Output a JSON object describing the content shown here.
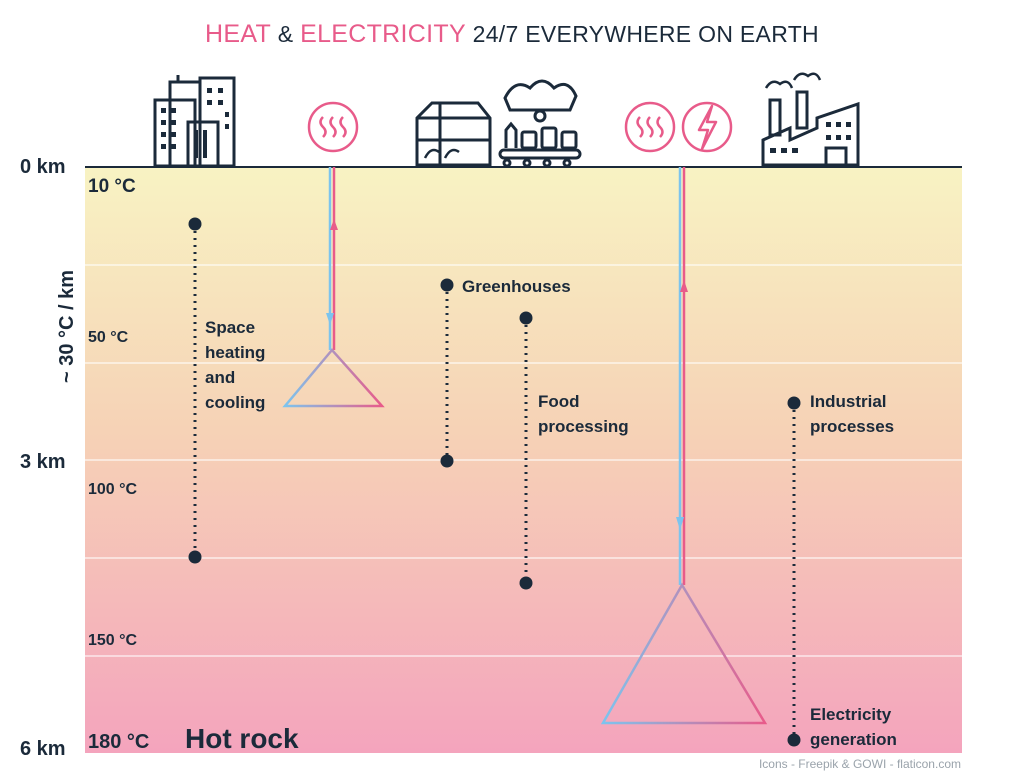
{
  "title": {
    "part1": "HEAT",
    "amp": " & ",
    "part2": "ELECTRICITY",
    "rest": " 24/7 EVERYWHERE ON EARTH"
  },
  "depth_labels": [
    "0 km",
    "3 km",
    "6 km"
  ],
  "gradient_label": "~ 30 °C / km",
  "temperature_labels": [
    "10 °C",
    "50 °C",
    "100 °C",
    "150 °C",
    "180 °C"
  ],
  "hot_rock": "Hot rock",
  "uses": [
    {
      "label_lines": [
        "Space",
        "heating",
        "and",
        "cooling"
      ]
    },
    {
      "label_lines": [
        "Greenhouses"
      ]
    },
    {
      "label_lines": [
        "Food",
        "processing"
      ]
    },
    {
      "label_lines": [
        "Industrial",
        "processes"
      ]
    },
    {
      "label_lines": [
        "Electricity",
        "generation"
      ]
    }
  ],
  "icons": [
    "city-buildings-icon",
    "heat-icon",
    "greenhouse-icon",
    "food-processing-icon",
    "heat-icon",
    "lightning-icon",
    "factory-icon"
  ],
  "credit": "Icons - Freepik & GOWI - flaticon.com",
  "colors": {
    "pink": "#e85b8a",
    "blue": "#7cc4ee",
    "navy": "#1b2a3a",
    "top": "#f7f2bf",
    "bottom": "#f3a4bd"
  }
}
